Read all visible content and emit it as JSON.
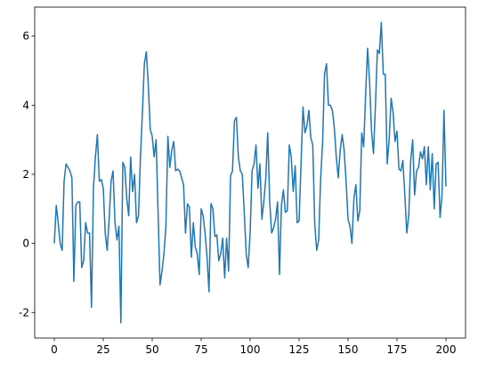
{
  "chart_data": {
    "type": "line",
    "x": [
      0,
      1,
      2,
      3,
      4,
      5,
      6,
      7,
      8,
      9,
      10,
      11,
      12,
      13,
      14,
      15,
      16,
      17,
      18,
      19,
      20,
      21,
      22,
      23,
      24,
      25,
      26,
      27,
      28,
      29,
      30,
      31,
      32,
      33,
      34,
      35,
      36,
      37,
      38,
      39,
      40,
      41,
      42,
      43,
      44,
      45,
      46,
      47,
      48,
      49,
      50,
      51,
      52,
      53,
      54,
      55,
      56,
      57,
      58,
      59,
      60,
      61,
      62,
      63,
      64,
      65,
      66,
      67,
      68,
      69,
      70,
      71,
      72,
      73,
      74,
      75,
      76,
      77,
      78,
      79,
      80,
      81,
      82,
      83,
      84,
      85,
      86,
      87,
      88,
      89,
      90,
      91,
      92,
      93,
      94,
      95,
      96,
      97,
      98,
      99,
      100,
      101,
      102,
      103,
      104,
      105,
      106,
      107,
      108,
      109,
      110,
      111,
      112,
      113,
      114,
      115,
      116,
      117,
      118,
      119,
      120,
      121,
      122,
      123,
      124,
      125,
      126,
      127,
      128,
      129,
      130,
      131,
      132,
      133,
      134,
      135,
      136,
      137,
      138,
      139,
      140,
      141,
      142,
      143,
      144,
      145,
      146,
      147,
      148,
      149,
      150,
      151,
      152,
      153,
      154,
      155,
      156,
      157,
      158,
      159,
      160,
      161,
      162,
      163,
      164,
      165,
      166,
      167,
      168,
      169,
      170,
      171,
      172,
      173,
      174,
      175,
      176,
      177,
      178,
      179,
      180,
      181,
      182,
      183,
      184,
      185,
      186,
      187,
      188,
      189,
      190,
      191,
      192,
      193,
      194,
      195,
      196,
      197,
      198,
      199,
      200
    ],
    "series": [
      {
        "color": "#1f77b4",
        "values": [
          0,
          1.1,
          0.6,
          0,
          -0.2,
          1.8,
          2.3,
          2.2,
          2.1,
          1.9,
          -1.1,
          1.1,
          1.2,
          1.2,
          -0.7,
          -0.5,
          0.6,
          0.3,
          0.3,
          -1.85,
          1.6,
          2.5,
          3.15,
          1.8,
          1.85,
          1.6,
          0.3,
          -0.2,
          0.7,
          1.8,
          2.1,
          0.6,
          0.1,
          0.5,
          -2.3,
          2.35,
          2.2,
          1.3,
          0.8,
          2.5,
          1.5,
          2.0,
          0.6,
          0.8,
          2.5,
          3.8,
          5.2,
          5.55,
          4.6,
          3.3,
          3.1,
          2.5,
          3.0,
          0.9,
          -1.2,
          -0.8,
          -0.3,
          0.5,
          3.1,
          2.2,
          2.7,
          2.95,
          2.1,
          2.15,
          2.1,
          1.9,
          1.7,
          0.3,
          1.15,
          1.05,
          -0.4,
          0.6,
          -0.1,
          -0.3,
          -0.9,
          1.0,
          0.8,
          0.3,
          -0.4,
          -1.4,
          1.15,
          1.0,
          0.2,
          0.25,
          -0.5,
          -0.3,
          0.15,
          -1.0,
          0.15,
          -0.8,
          1.95,
          2.1,
          3.55,
          3.65,
          2.5,
          2.1,
          2.0,
          0.9,
          -0.3,
          -0.7,
          0.3,
          2.1,
          2.3,
          2.85,
          1.6,
          2.3,
          0.7,
          1.2,
          1.9,
          3.2,
          1.2,
          0.3,
          0.45,
          0.7,
          1.2,
          -0.9,
          1.1,
          1.55,
          0.9,
          0.95,
          2.85,
          2.5,
          1.5,
          2.25,
          0.6,
          0.65,
          2.3,
          3.95,
          3.2,
          3.4,
          3.85,
          3.05,
          2.85,
          0.55,
          -0.2,
          0.1,
          1.85,
          2.9,
          4.9,
          5.2,
          4.0,
          4.0,
          3.85,
          3.35,
          2.5,
          1.9,
          2.7,
          3.15,
          2.7,
          1.8,
          0.7,
          0.5,
          0.0,
          1.3,
          1.7,
          0.65,
          0.95,
          3.2,
          2.8,
          4.35,
          5.65,
          4.7,
          3.25,
          2.6,
          4.0,
          5.6,
          5.5,
          6.4,
          4.9,
          4.9,
          2.3,
          3.0,
          4.2,
          3.8,
          2.95,
          3.25,
          2.15,
          2.1,
          2.4,
          1.4,
          0.3,
          0.8,
          2.4,
          3.0,
          1.4,
          2.1,
          2.2,
          2.65,
          2.45,
          2.8,
          1.7,
          2.8,
          1.55,
          2.6,
          1.0,
          2.3,
          2.35,
          0.75,
          1.4,
          3.85,
          1.65
        ]
      }
    ],
    "xlim": [
      -10,
      210
    ],
    "xticks": [
      0,
      25,
      50,
      75,
      100,
      125,
      150,
      175,
      200
    ],
    "ylim": [
      -2.74,
      6.84
    ],
    "yticks": [
      -2,
      0,
      2,
      4,
      6
    ],
    "grid": false
  }
}
